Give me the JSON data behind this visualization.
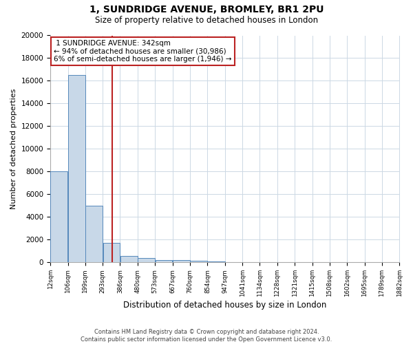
{
  "title": "1, SUNDRIDGE AVENUE, BROMLEY, BR1 2PU",
  "subtitle": "Size of property relative to detached houses in London",
  "xlabel": "Distribution of detached houses by size in London",
  "ylabel": "Number of detached properties",
  "property_size": 342,
  "property_label": "1 SUNDRIDGE AVENUE: 342sqm",
  "pct_smaller": 94,
  "n_smaller": 30986,
  "pct_larger": 6,
  "n_larger": 1946,
  "bar_color": "#c8d8e8",
  "bar_edge_color": "#5588bb",
  "vline_color": "#bb2222",
  "annotation_box_color": "#bb2222",
  "bins_left": [
    12,
    106,
    199,
    293,
    386,
    480,
    573,
    667,
    760,
    854,
    947,
    1041,
    1134,
    1228,
    1321,
    1415,
    1508,
    1602,
    1695,
    1789
  ],
  "bin_labels": [
    "12sqm",
    "106sqm",
    "199sqm",
    "293sqm",
    "386sqm",
    "480sqm",
    "573sqm",
    "667sqm",
    "760sqm",
    "854sqm",
    "947sqm",
    "1041sqm",
    "1134sqm",
    "1228sqm",
    "1321sqm",
    "1415sqm",
    "1508sqm",
    "1602sqm",
    "1695sqm",
    "1789sqm",
    "1882sqm"
  ],
  "counts": [
    8050,
    16500,
    5000,
    1700,
    550,
    380,
    230,
    190,
    130,
    80,
    0,
    0,
    0,
    0,
    0,
    0,
    0,
    0,
    0,
    0
  ],
  "bin_width": 94,
  "ylim": [
    0,
    20000
  ],
  "yticks": [
    0,
    2000,
    4000,
    6000,
    8000,
    10000,
    12000,
    14000,
    16000,
    18000,
    20000
  ],
  "xlim_left": 12,
  "xlim_right": 1882,
  "footer_line1": "Contains HM Land Registry data © Crown copyright and database right 2024.",
  "footer_line2": "Contains public sector information licensed under the Open Government Licence v3.0.",
  "bg_color": "#ffffff",
  "grid_color": "#ccd8e4"
}
